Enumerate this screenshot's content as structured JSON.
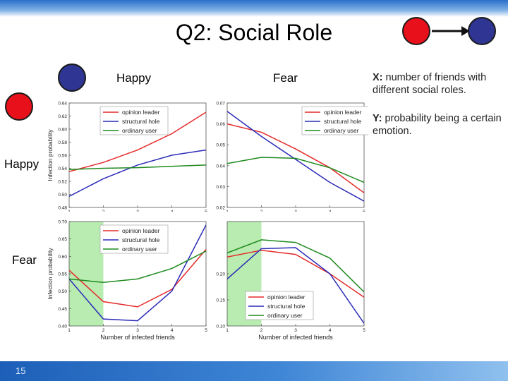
{
  "slide": {
    "title": "Q2: Social Role",
    "number": "15",
    "col_labels": [
      "Happy",
      "Fear"
    ],
    "row_labels": [
      "Happy",
      "Fear"
    ],
    "desc_x_key": "X:",
    "desc_x_text": " number of friends with different social roles.",
    "desc_y_key": "Y:",
    "desc_y_text": " probability being a certain emotion.",
    "colors": {
      "red_node": "#e8101a",
      "blue_node": "#2e3592",
      "highlight": "#b8ecb0"
    }
  },
  "chart_data": [
    {
      "type": "line",
      "panel": "happy-happy",
      "x": [
        1,
        2,
        3,
        4,
        5
      ],
      "xticks": [
        "1",
        "2",
        "3",
        "4",
        "5"
      ],
      "ylim": [
        0.48,
        0.64
      ],
      "yticks": [
        "0.48",
        "0.50",
        "0.52",
        "0.54",
        "0.56",
        "0.58",
        "0.60",
        "0.62",
        "0.64"
      ],
      "ylabel": "Infection probability",
      "xlabel": "",
      "legend": "top-left",
      "series": [
        {
          "name": "opinion leader",
          "color": "#e52a2a",
          "values": [
            0.535,
            0.549,
            0.568,
            0.593,
            0.626
          ]
        },
        {
          "name": "structural hole",
          "color": "#2a2ab8",
          "values": [
            0.497,
            0.524,
            0.545,
            0.56,
            0.568
          ]
        },
        {
          "name": "ordinary user",
          "color": "#1e8a1e",
          "values": [
            0.538,
            0.54,
            0.541,
            0.543,
            0.545
          ]
        }
      ]
    },
    {
      "type": "line",
      "panel": "happy-fear",
      "x": [
        1,
        2,
        3,
        4,
        5
      ],
      "xticks": [
        "1",
        "2",
        "3",
        "4",
        "5"
      ],
      "ylim": [
        0.02,
        0.07
      ],
      "yticks": [
        "0.02",
        "0.03",
        "0.04",
        "0.05",
        "0.06",
        "0.07"
      ],
      "ylabel": "",
      "xlabel": "",
      "legend": "top-right",
      "series": [
        {
          "name": "opinion leader",
          "color": "#e52a2a",
          "values": [
            0.06,
            0.056,
            0.048,
            0.039,
            0.027
          ]
        },
        {
          "name": "structural hole",
          "color": "#2a2ab8",
          "values": [
            0.066,
            0.054,
            0.043,
            0.032,
            0.023
          ]
        },
        {
          "name": "ordinary user",
          "color": "#1e8a1e",
          "values": [
            0.041,
            0.044,
            0.0435,
            0.039,
            0.032
          ]
        }
      ]
    },
    {
      "type": "line",
      "panel": "fear-happy",
      "x": [
        1,
        2,
        3,
        4,
        5
      ],
      "xticks": [
        "1",
        "2",
        "3",
        "4",
        "5"
      ],
      "ylim": [
        0.4,
        0.7
      ],
      "yticks": [
        "0.40",
        "0.45",
        "0.50",
        "0.55",
        "0.60",
        "0.65",
        "0.70"
      ],
      "ylabel": "Infection probability",
      "xlabel": "Number of infected friends",
      "legend": "top-left",
      "highlight_x": [
        1,
        2
      ],
      "series": [
        {
          "name": "opinion leader",
          "color": "#e52a2a",
          "values": [
            0.56,
            0.47,
            0.455,
            0.505,
            0.62
          ]
        },
        {
          "name": "structural hole",
          "color": "#2a2ab8",
          "values": [
            0.535,
            0.42,
            0.415,
            0.5,
            0.69
          ]
        },
        {
          "name": "ordinary user",
          "color": "#1e8a1e",
          "values": [
            0.535,
            0.525,
            0.535,
            0.565,
            0.615
          ]
        }
      ]
    },
    {
      "type": "line",
      "panel": "fear-fear",
      "x": [
        1,
        2,
        3,
        4,
        5
      ],
      "xticks": [
        "1",
        "2",
        "3",
        "4",
        "5"
      ],
      "ylim": [
        0.1,
        0.3
      ],
      "yticks": [
        "0.10",
        "0.15",
        "0.20"
      ],
      "ylabel": "",
      "xlabel": "Number of infected friends",
      "legend": "bottom-left",
      "highlight_x": [
        1,
        2
      ],
      "series": [
        {
          "name": "opinion leader",
          "color": "#e52a2a",
          "values": [
            0.232,
            0.245,
            0.237,
            0.2,
            0.155
          ]
        },
        {
          "name": "structural hole",
          "color": "#2a2ab8",
          "values": [
            0.19,
            0.248,
            0.25,
            0.2,
            0.105
          ]
        },
        {
          "name": "ordinary user",
          "color": "#1e8a1e",
          "values": [
            0.24,
            0.265,
            0.26,
            0.23,
            0.165
          ]
        }
      ]
    }
  ]
}
